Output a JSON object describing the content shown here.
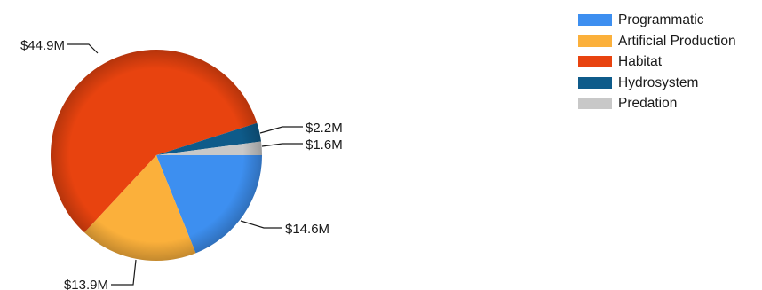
{
  "chart_data": {
    "type": "pie",
    "series": [
      {
        "name": "Programmatic",
        "value": 14.6,
        "label": "$14.6M",
        "color": "#3d8ff0"
      },
      {
        "name": "Artificial Production",
        "value": 13.9,
        "label": "$13.9M",
        "color": "#fbb03b"
      },
      {
        "name": "Habitat",
        "value": 44.9,
        "label": "$44.9M",
        "color": "#e8430f"
      },
      {
        "name": "Hydrosystem",
        "value": 2.2,
        "label": "$2.2M",
        "color": "#0e5b8a"
      },
      {
        "name": "Predation",
        "value": 1.6,
        "label": "$1.6M",
        "color": "#c8c8c8"
      }
    ],
    "units": "millions of dollars",
    "legend": "top-right",
    "title": ""
  }
}
